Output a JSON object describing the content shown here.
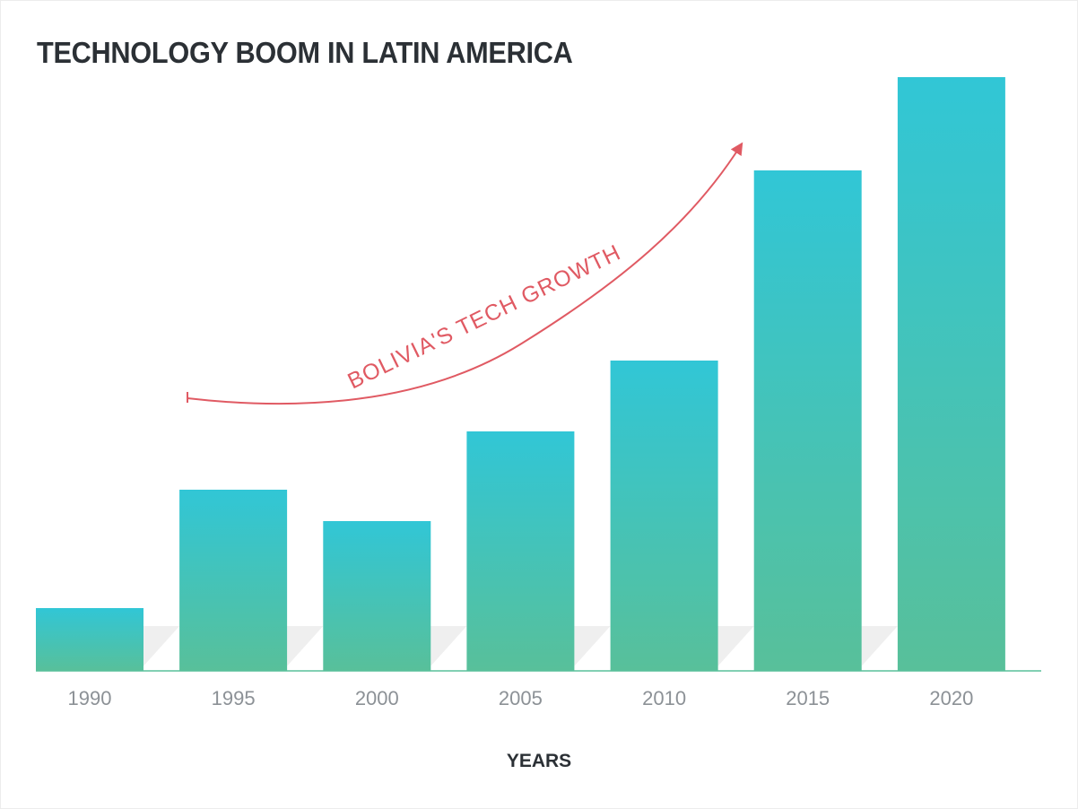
{
  "chart_data": {
    "type": "bar",
    "title": "TECHNOLOGY BOOM IN LATIN AMERICA",
    "xlabel": "YEARS",
    "ylabel": "",
    "categories": [
      "1990",
      "1995",
      "2000",
      "2005",
      "2010",
      "2015",
      "2020"
    ],
    "values": [
      70,
      202,
      167,
      267,
      346,
      558,
      662
    ],
    "ylim": [
      0,
      662
    ],
    "grid": false,
    "annotation": "BOLIVIA'S TECH GROWTH",
    "colors": {
      "bar_top": "#31c6d6",
      "bar_bottom": "#58c09a",
      "annotation": "#e05a63",
      "title": "#2b3035",
      "tick": "#8c9196",
      "shadow": "#efefef"
    }
  }
}
